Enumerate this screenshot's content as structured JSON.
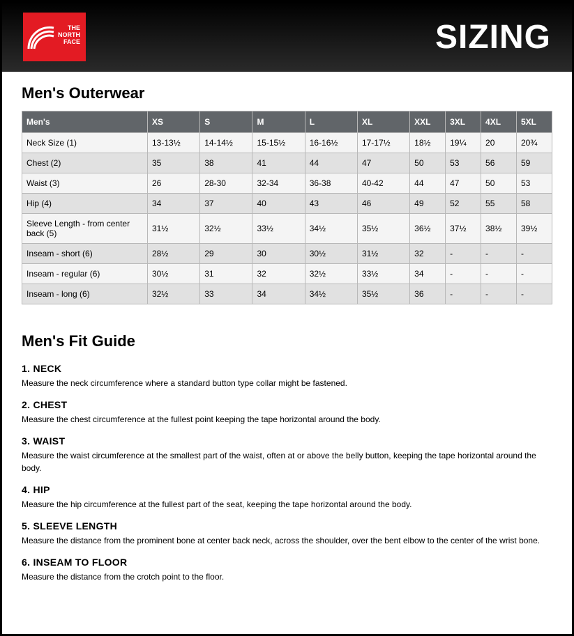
{
  "header": {
    "logo_text_line1": "THE",
    "logo_text_line2": "NORTH",
    "logo_text_line3": "FACE",
    "title": "SIZING",
    "logo_bg": "#e31b23",
    "header_bg_top": "#000000",
    "header_bg_bottom": "#2a2a2a"
  },
  "table": {
    "section_title": "Men's Outerwear",
    "header_bg": "#616569",
    "header_text_color": "#ffffff",
    "row_even_bg": "#e1e1e1",
    "row_odd_bg": "#f4f4f4",
    "border_color": "#b8b8b8",
    "columns": [
      "Men's",
      "XS",
      "S",
      "M",
      "L",
      "XL",
      "XXL",
      "3XL",
      "4XL",
      "5XL"
    ],
    "rows": [
      {
        "label": "Neck Size (1)",
        "cells": [
          "13-13½",
          "14-14½",
          "15-15½",
          "16-16½",
          "17-17½",
          "18½",
          "19¼",
          "20",
          "20¾"
        ]
      },
      {
        "label": "Chest (2)",
        "cells": [
          "35",
          "38",
          "41",
          "44",
          "47",
          "50",
          "53",
          "56",
          "59"
        ]
      },
      {
        "label": "Waist (3)",
        "cells": [
          "26",
          "28-30",
          "32-34",
          "36-38",
          "40-42",
          "44",
          "47",
          "50",
          "53"
        ]
      },
      {
        "label": "Hip (4)",
        "cells": [
          "34",
          "37",
          "40",
          "43",
          "46",
          "49",
          "52",
          "55",
          "58"
        ]
      },
      {
        "label": "Sleeve Length - from center back (5)",
        "cells": [
          "31½",
          "32½",
          "33½",
          "34½",
          "35½",
          "36½",
          "37½",
          "38½",
          "39½"
        ]
      },
      {
        "label": "Inseam - short (6)",
        "cells": [
          "28½",
          "29",
          "30",
          "30½",
          "31½",
          "32",
          "-",
          "-",
          "-"
        ]
      },
      {
        "label": "Inseam - regular (6)",
        "cells": [
          "30½",
          "31",
          "32",
          "32½",
          "33½",
          "34",
          "-",
          "-",
          "-"
        ]
      },
      {
        "label": "Inseam - long (6)",
        "cells": [
          "32½",
          "33",
          "34",
          "34½",
          "35½",
          "36",
          "-",
          "-",
          "-"
        ]
      }
    ]
  },
  "fit_guide": {
    "title": "Men's Fit Guide",
    "items": [
      {
        "heading": "1. NECK",
        "desc": "Measure the neck circumference where a standard button type collar might be fastened."
      },
      {
        "heading": "2. CHEST",
        "desc": "Measure the chest circumference at the fullest point keeping the tape horizontal around the body."
      },
      {
        "heading": "3. WAIST",
        "desc": "Measure the waist circumference at the smallest part of the waist, often at or above the belly button, keeping the tape horizontal around the body."
      },
      {
        "heading": "4. HIP",
        "desc": "Measure the hip circumference at the fullest part of the seat, keeping the tape horizontal around the body."
      },
      {
        "heading": "5. SLEEVE LENGTH",
        "desc": "Measure the distance from the prominent bone at center back neck, across the shoulder, over the bent elbow to the center of the wrist bone."
      },
      {
        "heading": "6. INSEAM TO FLOOR",
        "desc": "Measure the distance from the crotch point to the floor."
      }
    ]
  }
}
